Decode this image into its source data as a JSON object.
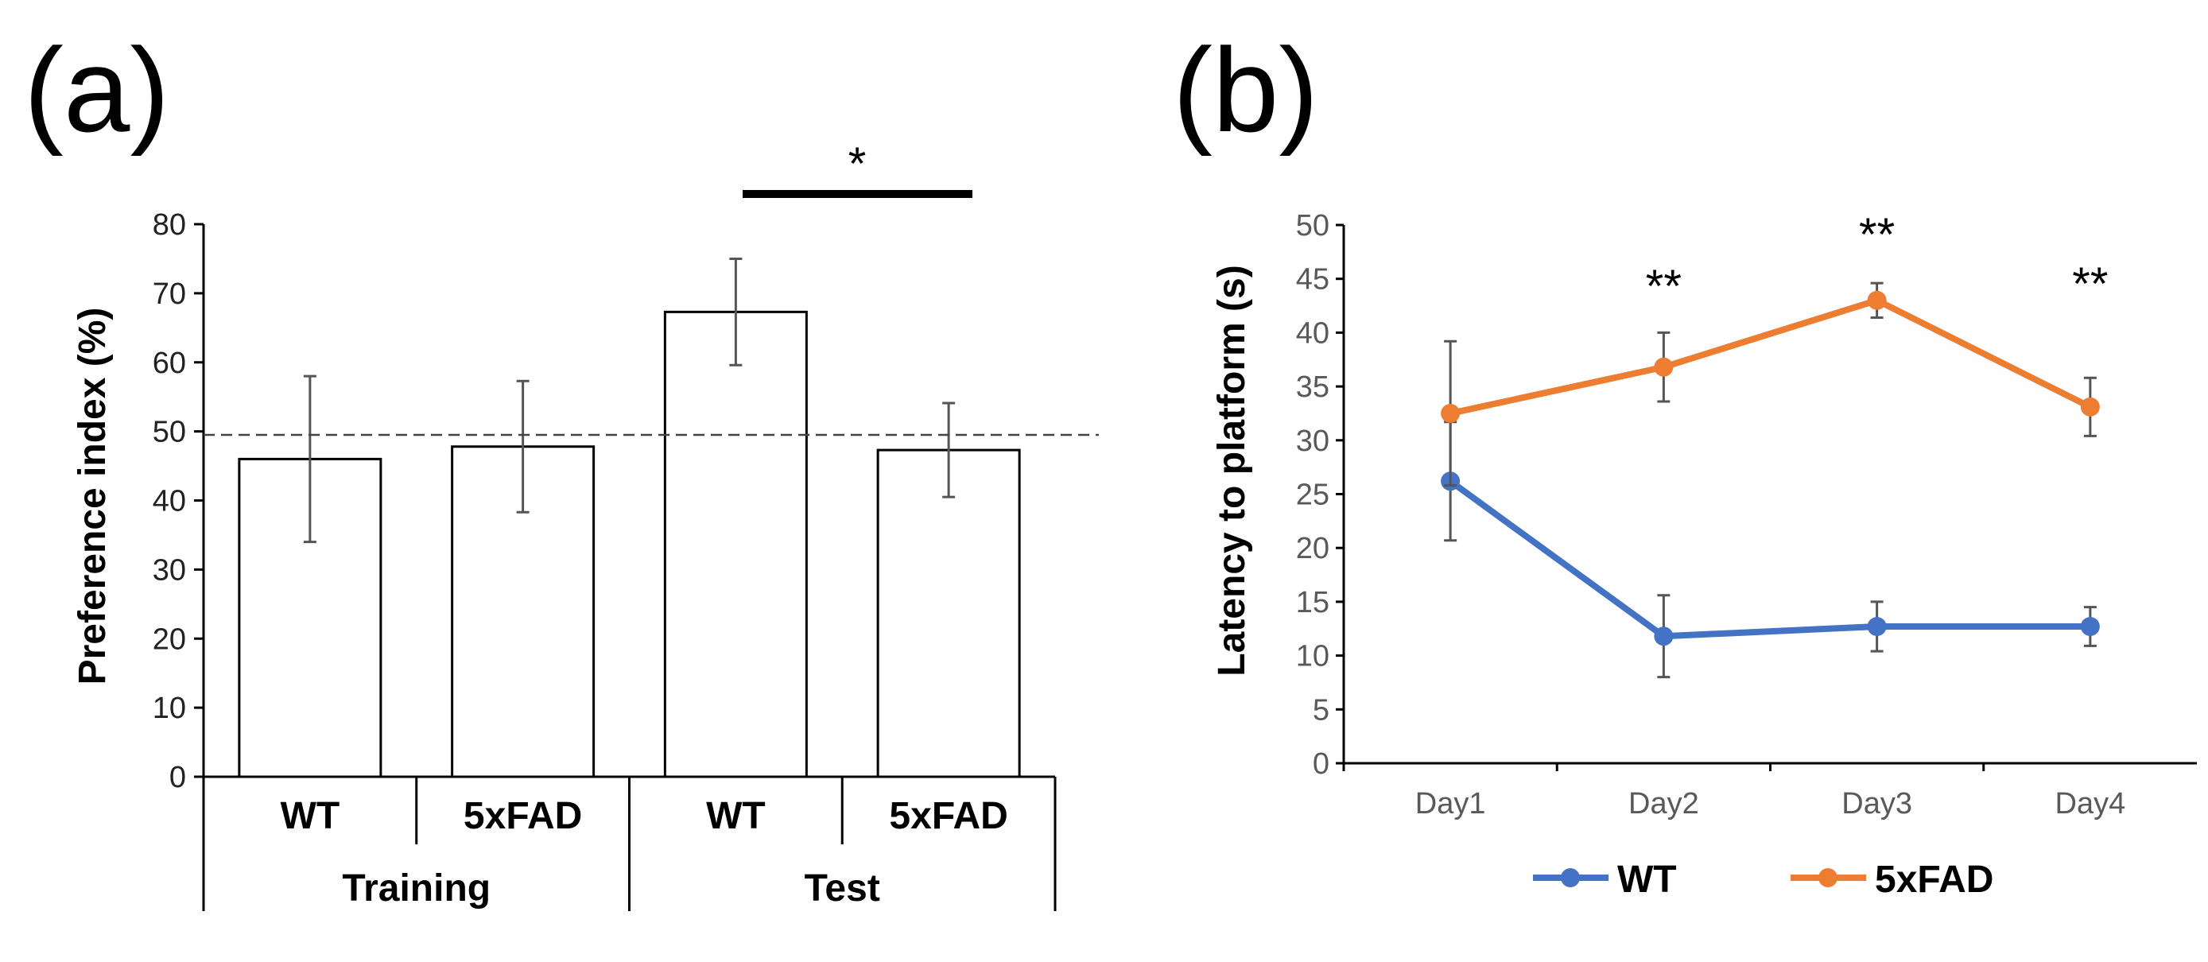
{
  "chart_data": [
    {
      "type": "bar",
      "panel_label": "(a)",
      "ylabel": "Preference index (%)",
      "ylim": [
        0,
        80
      ],
      "yticks": [
        "0",
        "10",
        "20",
        "30",
        "40",
        "50",
        "60",
        "70",
        "80"
      ],
      "groups": [
        {
          "label": "Training",
          "categories": [
            "WT",
            "5xFAD"
          ]
        },
        {
          "label": "Test",
          "categories": [
            "WT",
            "5xFAD"
          ]
        }
      ],
      "values": [
        46.0,
        47.8,
        67.3,
        47.3
      ],
      "errors": [
        12.0,
        9.5,
        7.7,
        6.8
      ],
      "reference_line": 49.5,
      "significance": {
        "label": "*",
        "between": [
          2,
          3
        ]
      }
    },
    {
      "type": "line",
      "panel_label": "(b)",
      "ylabel": "Latency to platform (s)",
      "ylim": [
        0,
        50
      ],
      "yticks": [
        "0",
        "5",
        "10",
        "15",
        "20",
        "25",
        "30",
        "35",
        "40",
        "45",
        "50"
      ],
      "categories": [
        "Day1",
        "Day2",
        "Day3",
        "Day4"
      ],
      "series": [
        {
          "name": "WT",
          "color": "#4472C4",
          "values": [
            26.2,
            11.8,
            12.7,
            12.7
          ],
          "errors": [
            5.5,
            3.8,
            2.3,
            1.8
          ]
        },
        {
          "name": "5xFAD",
          "color": "#ED7D31",
          "values": [
            32.5,
            36.8,
            43.0,
            33.1
          ],
          "errors": [
            6.7,
            3.2,
            1.6,
            2.7
          ]
        }
      ],
      "annotations": [
        "",
        "**",
        "**",
        "**"
      ],
      "legend": "bottom"
    }
  ]
}
